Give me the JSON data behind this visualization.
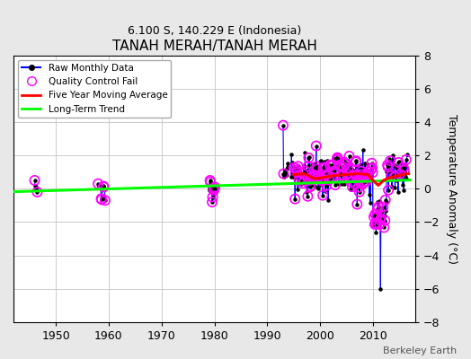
{
  "title": "TANAH MERAH/TANAH MERAH",
  "subtitle": "6.100 S, 140.229 E (Indonesia)",
  "ylabel": "Temperature Anomaly (°C)",
  "credit": "Berkeley Earth",
  "xlim": [
    1942,
    2018
  ],
  "ylim": [
    -8,
    8
  ],
  "yticks": [
    -8,
    -6,
    -4,
    -2,
    0,
    2,
    4,
    6,
    8
  ],
  "xticks": [
    1950,
    1960,
    1970,
    1980,
    1990,
    2000,
    2010
  ],
  "bg_color": "#e8e8e8",
  "plot_bg_color": "#ffffff",
  "legend_labels": [
    "Raw Monthly Data",
    "Quality Control Fail",
    "Five Year Moving Average",
    "Long-Term Trend"
  ],
  "long_term_trend": {
    "x": [
      1942,
      2017
    ],
    "y": [
      -0.18,
      0.52
    ]
  }
}
